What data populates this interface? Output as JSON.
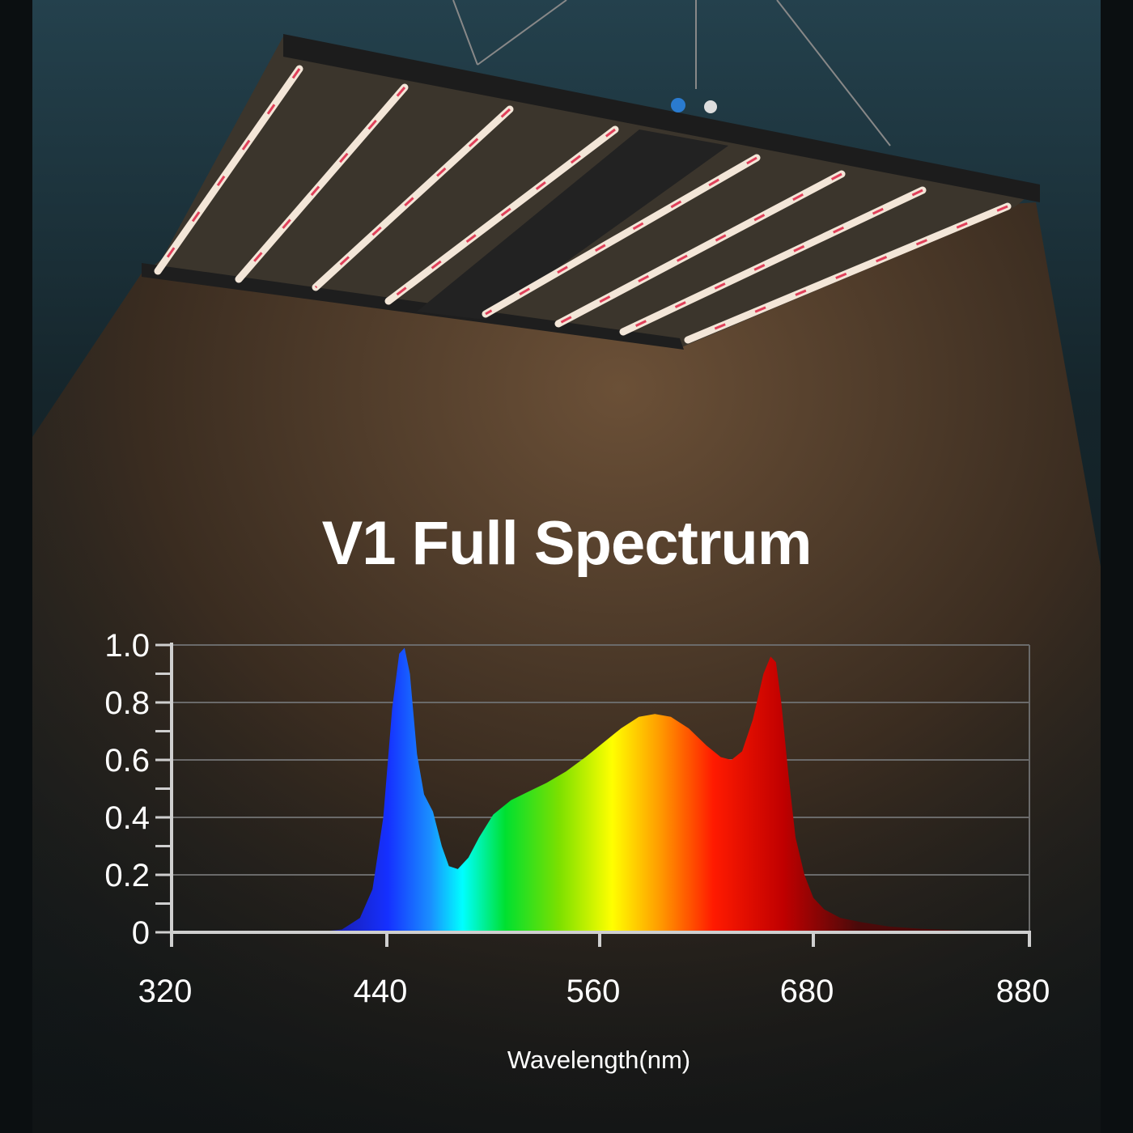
{
  "headline": "V1 Full Spectrum",
  "colors": {
    "background_top": "#1d3a45",
    "light_cone": "#5a4430",
    "axis": "#cfcfcf",
    "text": "#ffffff"
  },
  "chart_data": {
    "type": "area",
    "title": "",
    "xlabel": "Wavelength(nm)",
    "ylabel": "",
    "xticks": [
      320,
      440,
      560,
      680,
      880
    ],
    "yticks": [
      "0",
      "0.2",
      "0.4",
      "0.6",
      "0.8",
      "1.0"
    ],
    "ylim": [
      0,
      1.0
    ],
    "xlim": [
      320,
      880
    ],
    "grid": true,
    "fill": "spectral gradient blue-to-red",
    "x": [
      400,
      415,
      425,
      432,
      438,
      443,
      447,
      450,
      453,
      457,
      461,
      466,
      471,
      475,
      480,
      486,
      492,
      500,
      510,
      520,
      530,
      541,
      552,
      562,
      572,
      582,
      591,
      600,
      610,
      620,
      628,
      634,
      640,
      646,
      652,
      656,
      659,
      662,
      666,
      670,
      675,
      680,
      690,
      705,
      725,
      750,
      780,
      826,
      860
    ],
    "y": [
      0,
      0.01,
      0.05,
      0.15,
      0.4,
      0.78,
      0.97,
      0.99,
      0.9,
      0.62,
      0.48,
      0.42,
      0.3,
      0.23,
      0.22,
      0.26,
      0.33,
      0.41,
      0.46,
      0.49,
      0.52,
      0.56,
      0.61,
      0.66,
      0.71,
      0.75,
      0.76,
      0.75,
      0.71,
      0.65,
      0.61,
      0.6,
      0.63,
      0.74,
      0.9,
      0.96,
      0.94,
      0.8,
      0.55,
      0.33,
      0.2,
      0.12,
      0.08,
      0.05,
      0.035,
      0.02,
      0.012,
      0.005,
      0
    ]
  }
}
